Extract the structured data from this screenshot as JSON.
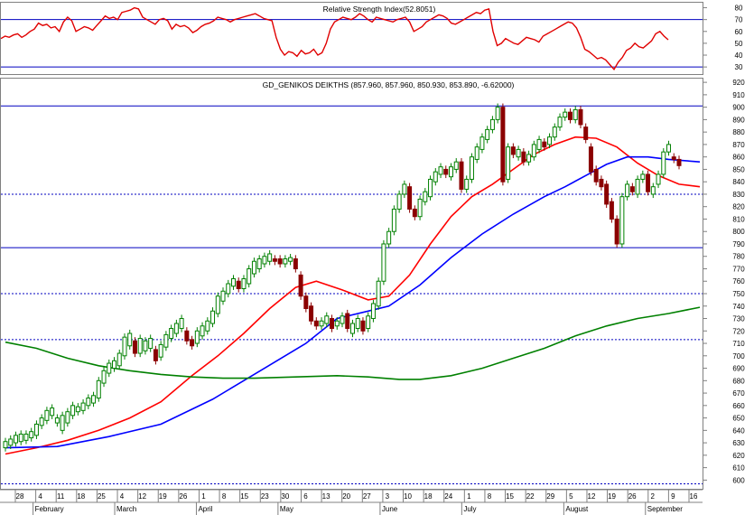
{
  "chart_data": [
    {
      "type": "line",
      "title": "Relative Strength Index(52.8051)",
      "y_ticks": [
        80,
        70,
        60,
        50,
        40,
        30
      ],
      "ylim": [
        24,
        85
      ],
      "levels": [
        70,
        30
      ],
      "series": [
        {
          "color": "#e00000",
          "values": [
            54,
            56,
            55,
            57,
            58,
            55,
            57,
            60,
            62,
            67,
            65,
            66,
            63,
            64,
            60,
            68,
            72,
            69,
            60,
            62,
            64,
            63,
            61,
            65,
            69,
            73,
            71,
            72,
            70,
            76,
            77,
            78,
            80,
            79,
            72,
            70,
            68,
            66,
            70,
            71,
            69,
            62,
            66,
            64,
            65,
            63,
            59,
            61,
            64,
            66,
            67,
            69,
            72,
            71,
            70,
            68,
            70,
            71,
            72,
            73,
            74,
            75,
            73,
            71,
            70,
            69,
            55,
            45,
            40,
            43,
            42,
            39,
            44,
            41,
            42,
            45,
            40,
            42,
            50,
            62,
            68,
            70,
            72,
            71,
            70,
            72,
            75,
            73,
            70,
            68,
            72,
            71,
            70,
            69,
            68,
            70,
            71,
            72,
            68,
            60,
            62,
            64,
            68,
            70,
            72,
            74,
            73,
            71,
            67,
            66,
            68,
            70,
            72,
            74,
            76,
            75,
            78,
            79,
            60,
            48,
            50,
            54,
            52,
            50,
            49,
            52,
            55,
            54,
            53,
            51,
            56,
            58,
            60,
            62,
            64,
            66,
            68,
            67,
            63,
            55,
            45,
            43,
            40,
            37,
            38,
            36,
            32,
            28,
            34,
            38,
            44,
            46,
            50,
            47,
            46,
            49,
            52,
            58,
            60,
            56,
            53
          ]
        }
      ],
      "xlabel": "",
      "ylabel": ""
    },
    {
      "type": "candlestick",
      "title": "GD_GENIKOS DEIKTHS (857.960, 857.960, 850.930, 853.890, -6.62000)",
      "y_ticks": [
        920,
        910,
        900,
        890,
        880,
        870,
        860,
        850,
        840,
        830,
        820,
        810,
        800,
        790,
        780,
        770,
        760,
        750,
        740,
        730,
        720,
        710,
        700,
        690,
        680,
        670,
        660,
        650,
        640,
        630,
        620,
        610,
        600
      ],
      "ylim": [
        593,
        923
      ],
      "levels_solid": [
        901,
        787
      ],
      "levels_dashed": [
        830,
        750,
        713,
        597
      ],
      "candles": [
        [
          626,
          631
        ],
        [
          628,
          633
        ],
        [
          630,
          636
        ],
        [
          631,
          637
        ],
        [
          632,
          637
        ],
        [
          634,
          639
        ],
        [
          636,
          645
        ],
        [
          644,
          650
        ],
        [
          648,
          656
        ],
        [
          652,
          658
        ],
        [
          646,
          650
        ],
        [
          640,
          652
        ],
        [
          646,
          655
        ],
        [
          652,
          660
        ],
        [
          655,
          659
        ],
        [
          656,
          662
        ],
        [
          660,
          666
        ],
        [
          662,
          668
        ],
        [
          666,
          680
        ],
        [
          678,
          688
        ],
        [
          686,
          694
        ],
        [
          690,
          696
        ],
        [
          692,
          702
        ],
        [
          700,
          715
        ],
        [
          708,
          718
        ],
        [
          712,
          702
        ],
        [
          702,
          714
        ],
        [
          704,
          712
        ],
        [
          706,
          714
        ],
        [
          705,
          696
        ],
        [
          699,
          709
        ],
        [
          707,
          717
        ],
        [
          714,
          722
        ],
        [
          718,
          726
        ],
        [
          722,
          730
        ],
        [
          720,
          712
        ],
        [
          713,
          708
        ],
        [
          710,
          720
        ],
        [
          716,
          724
        ],
        [
          720,
          728
        ],
        [
          726,
          736
        ],
        [
          734,
          748
        ],
        [
          744,
          752
        ],
        [
          750,
          758
        ],
        [
          756,
          762
        ],
        [
          760,
          754
        ],
        [
          754,
          762
        ],
        [
          758,
          770
        ],
        [
          766,
          776
        ],
        [
          770,
          778
        ],
        [
          774,
          780
        ],
        [
          776,
          782
        ],
        [
          778,
          776
        ],
        [
          778,
          774
        ],
        [
          774,
          778
        ],
        [
          776,
          779
        ],
        [
          778,
          770
        ],
        [
          765,
          748
        ],
        [
          748,
          738
        ],
        [
          740,
          728
        ],
        [
          728,
          724
        ],
        [
          724,
          728
        ],
        [
          726,
          732
        ],
        [
          730,
          722
        ],
        [
          724,
          728
        ],
        [
          726,
          732
        ],
        [
          734,
          722
        ],
        [
          718,
          726
        ],
        [
          722,
          730
        ],
        [
          728,
          720
        ],
        [
          722,
          732
        ],
        [
          730,
          742
        ],
        [
          740,
          760
        ],
        [
          760,
          790
        ],
        [
          790,
          800
        ],
        [
          800,
          818
        ],
        [
          818,
          830
        ],
        [
          830,
          838
        ],
        [
          836,
          818
        ],
        [
          818,
          812
        ],
        [
          812,
          826
        ],
        [
          824,
          832
        ],
        [
          828,
          842
        ],
        [
          840,
          848
        ],
        [
          846,
          852
        ],
        [
          850,
          846
        ],
        [
          844,
          852
        ],
        [
          850,
          856
        ],
        [
          856,
          834
        ],
        [
          834,
          842
        ],
        [
          842,
          860
        ],
        [
          858,
          868
        ],
        [
          866,
          876
        ],
        [
          874,
          882
        ],
        [
          882,
          890
        ],
        [
          890,
          900
        ],
        [
          900,
          840
        ],
        [
          842,
          868
        ],
        [
          868,
          862
        ],
        [
          860,
          866
        ],
        [
          864,
          856
        ],
        [
          856,
          862
        ],
        [
          860,
          870
        ],
        [
          866,
          874
        ],
        [
          872,
          868
        ],
        [
          870,
          876
        ],
        [
          876,
          884
        ],
        [
          884,
          892
        ],
        [
          892,
          896
        ],
        [
          896,
          890
        ],
        [
          890,
          898
        ],
        [
          898,
          886
        ],
        [
          884,
          874
        ],
        [
          868,
          848
        ],
        [
          850,
          840
        ],
        [
          842,
          836
        ],
        [
          838,
          822
        ],
        [
          824,
          810
        ],
        [
          810,
          790
        ],
        [
          790,
          828
        ],
        [
          828,
          838
        ],
        [
          836,
          832
        ],
        [
          830,
          842
        ],
        [
          842,
          846
        ],
        [
          846,
          832
        ],
        [
          830,
          836
        ],
        [
          838,
          846
        ],
        [
          846,
          864
        ],
        [
          864,
          870
        ],
        [
          860,
          858
        ],
        [
          858,
          853
        ]
      ],
      "ma_series": [
        {
          "name": "",
          "color": "#ff0000",
          "points": [
            [
              0,
              621
            ],
            [
              6,
              626
            ],
            [
              12,
              632
            ],
            [
              18,
              640
            ],
            [
              24,
              650
            ],
            [
              30,
              663
            ],
            [
              36,
              684
            ],
            [
              41,
              700
            ],
            [
              46,
              718
            ],
            [
              51,
              738
            ],
            [
              56,
              755
            ],
            [
              60,
              760
            ],
            [
              65,
              753
            ],
            [
              70,
              745
            ],
            [
              74,
              748
            ],
            [
              78,
              765
            ],
            [
              82,
              790
            ],
            [
              86,
              812
            ],
            [
              90,
              828
            ],
            [
              94,
              838
            ],
            [
              98,
              850
            ],
            [
              102,
              862
            ],
            [
              106,
              870
            ],
            [
              110,
              876
            ],
            [
              114,
              875
            ],
            [
              118,
              868
            ],
            [
              122,
              855
            ],
            [
              126,
              845
            ],
            [
              130,
              838
            ],
            [
              134,
              836
            ]
          ]
        },
        {
          "name": "",
          "color": "#0000ff",
          "points": [
            [
              0,
              626
            ],
            [
              10,
              627
            ],
            [
              20,
              635
            ],
            [
              30,
              645
            ],
            [
              40,
              665
            ],
            [
              50,
              690
            ],
            [
              58,
              710
            ],
            [
              64,
              730
            ],
            [
              70,
              736
            ],
            [
              74,
              740
            ],
            [
              80,
              757
            ],
            [
              86,
              779
            ],
            [
              92,
              798
            ],
            [
              98,
              814
            ],
            [
              104,
              828
            ],
            [
              108,
              836
            ],
            [
              112,
              845
            ],
            [
              116,
              854
            ],
            [
              120,
              860
            ],
            [
              124,
              860
            ],
            [
              128,
              858
            ],
            [
              134,
              856
            ]
          ]
        },
        {
          "name": "",
          "color": "#008000",
          "points": [
            [
              0,
              711
            ],
            [
              6,
              706
            ],
            [
              12,
              698
            ],
            [
              18,
              692
            ],
            [
              24,
              688
            ],
            [
              30,
              685
            ],
            [
              36,
              683
            ],
            [
              42,
              682
            ],
            [
              48,
              682
            ],
            [
              56,
              683
            ],
            [
              64,
              684
            ],
            [
              70,
              683
            ],
            [
              76,
              681
            ],
            [
              80,
              681
            ],
            [
              86,
              684
            ],
            [
              92,
              690
            ],
            [
              98,
              698
            ],
            [
              104,
              706
            ],
            [
              110,
              716
            ],
            [
              116,
              724
            ],
            [
              122,
              730
            ],
            [
              128,
              734
            ],
            [
              134,
              739
            ]
          ]
        }
      ],
      "xlabel": "",
      "ylabel": ""
    }
  ],
  "x_axis": {
    "day_ticks": [
      "28",
      "4",
      "11",
      "18",
      "25",
      "4",
      "12",
      "19",
      "26",
      "1",
      "8",
      "15",
      "23",
      "30",
      "6",
      "13",
      "20",
      "27",
      "3",
      "10",
      "18",
      "24",
      "1",
      "8",
      "15",
      "22",
      "29",
      "5",
      "12",
      "19",
      "26",
      "2",
      "9",
      "16"
    ],
    "months": [
      "February",
      "March",
      "April",
      "May",
      "June",
      "July",
      "August",
      "September"
    ]
  }
}
